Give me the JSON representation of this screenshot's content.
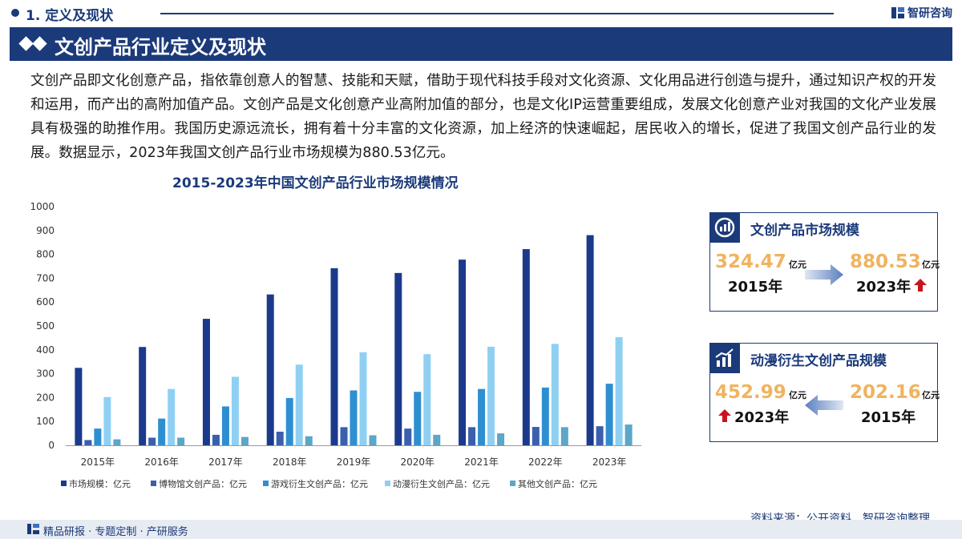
{
  "header": {
    "section": "1. 定义及现状",
    "brand": "智研咨询",
    "banner_title": "文创产品行业定义及现状"
  },
  "intro": "文创产品即文化创意产品，指依靠创意人的智慧、技能和天赋，借助于现代科技手段对文化资源、文化用品进行创造与提升，通过知识产权的开发和运用，而产出的高附加值产品。文创产品是文化创意产业高附加值的部分，也是文化IP运营重要组成，发展文化创意产业对我国的文化产业发展具有极强的助推作用。我国历史源远流长，拥有着十分丰富的文化资源，加上经济的快速崛起，居民收入的增长，促进了我国文创产品行业的发展。数据显示，2023年我国文创产品行业市场规模为880.53亿元。",
  "chart_data": {
    "type": "bar",
    "title": "2015-2023年中国文创产品行业市场规模情况",
    "categories": [
      "2015年",
      "2016年",
      "2017年",
      "2018年",
      "2019年",
      "2020年",
      "2021年",
      "2022年",
      "2023年"
    ],
    "series": [
      {
        "name": "市场规模：亿元",
        "color": "#1b3a8c",
        "values": [
          324.47,
          412,
          530,
          632,
          742,
          722,
          778,
          822,
          880.53
        ]
      },
      {
        "name": "博物馆文创产品：亿元",
        "color": "#3a5fad",
        "values": [
          22,
          32,
          44,
          57,
          76,
          70,
          76,
          77,
          80
        ]
      },
      {
        "name": "游戏衍生文创产品：亿元",
        "color": "#2e8fd0",
        "values": [
          70,
          112,
          163,
          198,
          230,
          224,
          236,
          242,
          258
        ]
      },
      {
        "name": "动漫衍生文创产品：亿元",
        "color": "#8fd0f2",
        "values": [
          202.16,
          236,
          287,
          338,
          390,
          382,
          413,
          425,
          452.99
        ]
      },
      {
        "name": "其他文创产品：亿元",
        "color": "#5ba6c9",
        "values": [
          25,
          32,
          35,
          38,
          42,
          44,
          50,
          76,
          87
        ]
      }
    ],
    "yticks": [
      "0",
      "100",
      "200",
      "300",
      "400",
      "500",
      "600",
      "700",
      "800",
      "900",
      "1000"
    ],
    "ylim": [
      0,
      1000
    ],
    "grid": false,
    "legend": "bottom"
  },
  "card_market": {
    "title": "文创产品市场规模",
    "value_start": "324.47",
    "unit_start": "亿元",
    "year_start": "2015年",
    "value_end": "880.53",
    "unit_end": "亿元",
    "year_end": "2023年"
  },
  "card_anime": {
    "title": "动漫衍生文创产品规模",
    "value_end": "452.99",
    "unit_end": "亿元",
    "year_end": "2023年",
    "value_start": "202.16",
    "unit_start": "亿元",
    "year_start": "2015年"
  },
  "source": "资料来源：公开资料、智研咨询整理",
  "footer": "精品研报 · 专题定制 · 产研服务"
}
